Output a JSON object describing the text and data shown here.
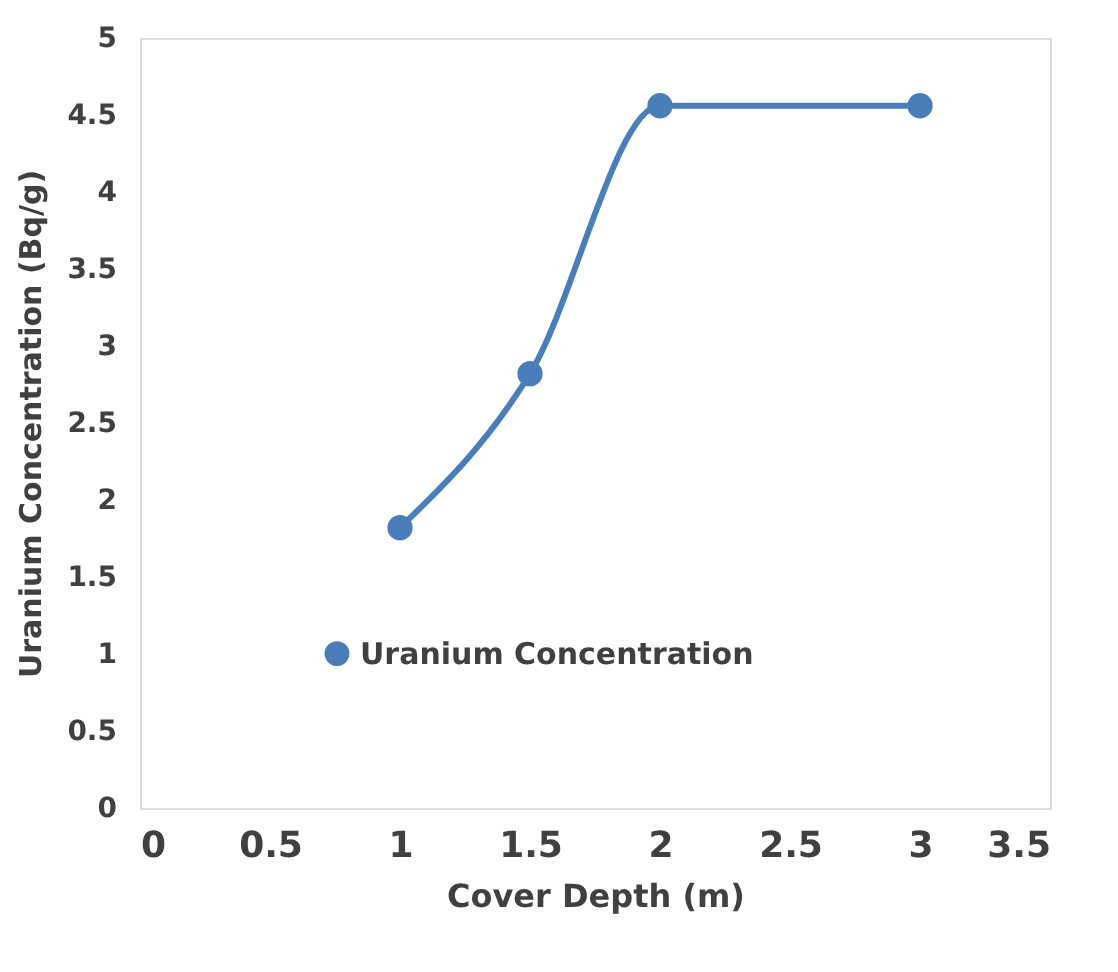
{
  "chart_data": {
    "type": "line",
    "xlabel": "Cover Depth (m)",
    "ylabel": "Uranium Concentration (Bq/g)",
    "x": [
      1,
      1.5,
      2,
      3
    ],
    "series": [
      {
        "name": "Uranium Concentration",
        "color": "#4a7ebb",
        "values": [
          1.82,
          2.82,
          4.56,
          4.56
        ]
      }
    ],
    "xlim": [
      0,
      3.5
    ],
    "xticks": [
      0,
      0.5,
      1,
      1.5,
      2,
      2.5,
      3,
      3.5
    ],
    "ylim": [
      0,
      5
    ],
    "yticks": [
      0,
      0.5,
      1,
      1.5,
      2,
      2.5,
      3,
      3.5,
      4,
      4.5,
      5
    ],
    "marker": "circle",
    "line_style": "solid",
    "grid": false,
    "legend": "center"
  }
}
